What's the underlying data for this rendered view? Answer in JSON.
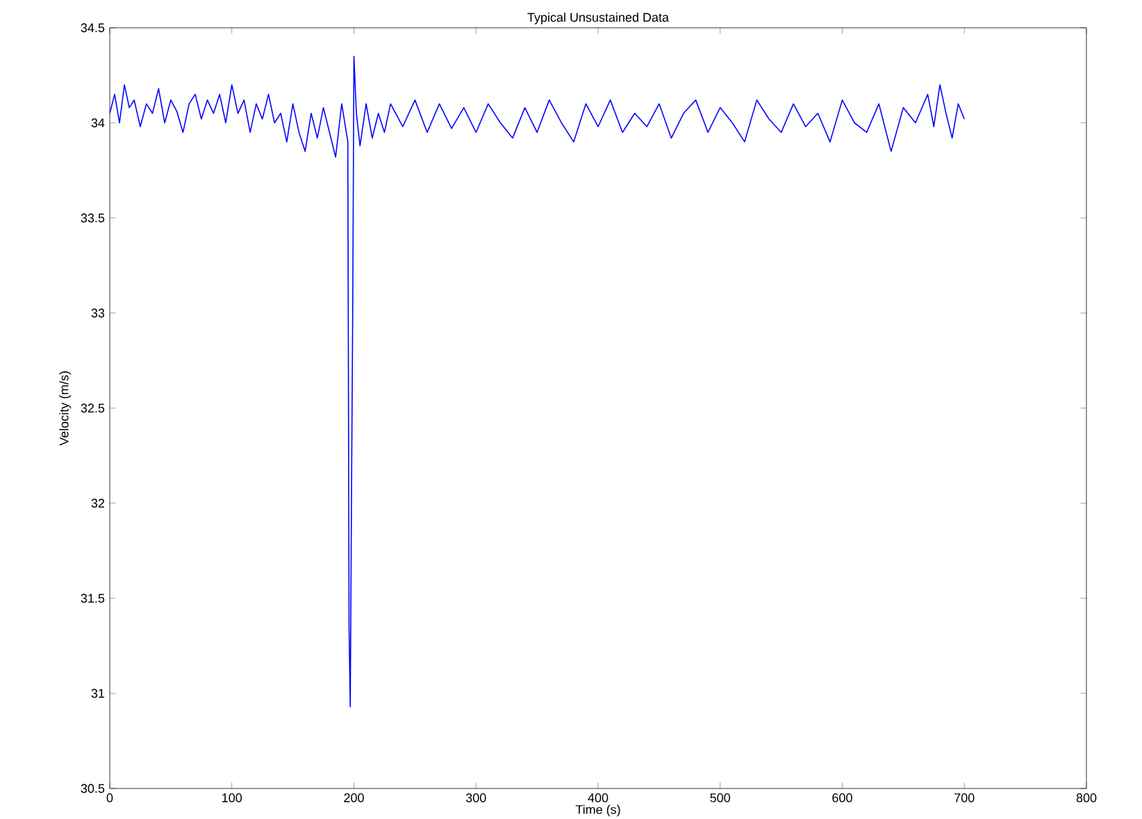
{
  "chart_data": {
    "type": "line",
    "title": "Typical Unsustained Data",
    "xlabel": "Time (s)",
    "ylabel": "Velocity (m/s)",
    "xlim": [
      0,
      800
    ],
    "ylim": [
      30.5,
      34.5
    ],
    "xticks": [
      0,
      100,
      200,
      300,
      400,
      500,
      600,
      700,
      800
    ],
    "yticks": [
      30.5,
      31,
      31.5,
      32,
      32.5,
      33,
      33.5,
      34,
      34.5
    ],
    "grid": false,
    "marker": "none",
    "line_style": "solid",
    "series": [
      {
        "color": "#0000ff",
        "x": [
          0,
          4,
          8,
          12,
          16,
          20,
          25,
          30,
          35,
          40,
          45,
          50,
          55,
          60,
          65,
          70,
          75,
          80,
          85,
          90,
          95,
          100,
          105,
          110,
          115,
          120,
          125,
          130,
          135,
          140,
          145,
          150,
          155,
          160,
          165,
          170,
          175,
          180,
          185,
          190,
          193,
          195,
          196,
          197,
          198,
          199,
          200,
          202,
          205,
          210,
          215,
          220,
          225,
          230,
          240,
          250,
          260,
          270,
          280,
          290,
          300,
          310,
          320,
          330,
          340,
          350,
          360,
          370,
          380,
          390,
          400,
          410,
          420,
          430,
          440,
          450,
          460,
          470,
          480,
          490,
          500,
          510,
          520,
          530,
          540,
          550,
          560,
          570,
          580,
          590,
          600,
          610,
          620,
          630,
          640,
          650,
          660,
          670,
          675,
          680,
          685,
          690,
          695,
          700
        ],
        "values": [
          34.05,
          34.15,
          34.0,
          34.2,
          34.08,
          34.12,
          33.98,
          34.1,
          34.05,
          34.18,
          34.0,
          34.12,
          34.06,
          33.95,
          34.1,
          34.15,
          34.02,
          34.12,
          34.05,
          34.15,
          34.0,
          34.2,
          34.05,
          34.12,
          33.95,
          34.1,
          34.02,
          34.15,
          34.0,
          34.05,
          33.9,
          34.1,
          33.95,
          33.85,
          34.05,
          33.92,
          34.08,
          33.95,
          33.82,
          34.1,
          33.98,
          33.9,
          31.35,
          30.93,
          32.02,
          33.0,
          34.35,
          34.05,
          33.88,
          34.1,
          33.92,
          34.05,
          33.95,
          34.1,
          33.98,
          34.12,
          33.95,
          34.1,
          33.97,
          34.08,
          33.95,
          34.1,
          34.0,
          33.92,
          34.08,
          33.95,
          34.12,
          34.0,
          33.9,
          34.1,
          33.98,
          34.12,
          33.95,
          34.05,
          33.98,
          34.1,
          33.92,
          34.05,
          34.12,
          33.95,
          34.08,
          34.0,
          33.9,
          34.12,
          34.02,
          33.95,
          34.1,
          33.98,
          34.05,
          33.9,
          34.12,
          34.0,
          33.95,
          34.1,
          33.85,
          34.08,
          34.0,
          34.15,
          33.98,
          34.2,
          34.05,
          33.92,
          34.1,
          34.02
        ]
      }
    ]
  }
}
